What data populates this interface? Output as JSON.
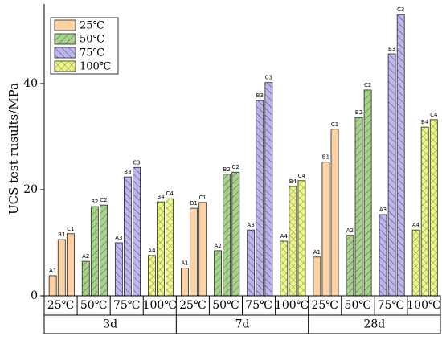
{
  "chart_data": {
    "type": "grouped_bar",
    "y_label": "UCS test rusults/MPa",
    "ylim": [
      0,
      55
    ],
    "yticks": [
      0,
      20,
      40
    ],
    "legend": [
      {
        "name": "25℃",
        "color": "#fcd2a2",
        "pattern": "none"
      },
      {
        "name": "50℃",
        "color": "#a9d18e",
        "pattern": "forward"
      },
      {
        "name": "75℃",
        "color": "#bcb6ea",
        "pattern": "backward"
      },
      {
        "name": "100℃",
        "color": "#eef78a",
        "pattern": "cross"
      }
    ],
    "groups": [
      {
        "name": "3d",
        "categories": [
          "25℃",
          "50℃",
          "75℃",
          "100℃"
        ],
        "bars": [
          [
            {
              "label": "A1",
              "value": 3.8
            },
            {
              "label": "B1",
              "value": 10.6
            },
            {
              "label": "C1",
              "value": 11.7
            }
          ],
          [
            {
              "label": "A2",
              "value": 6.5
            },
            {
              "label": "B2",
              "value": 16.8
            },
            {
              "label": "C2",
              "value": 17.1
            }
          ],
          [
            {
              "label": "A3",
              "value": 10.0
            },
            {
              "label": "B3",
              "value": 22.4
            },
            {
              "label": "C3",
              "value": 24.2
            }
          ],
          [
            {
              "label": "A4",
              "value": 7.6
            },
            {
              "label": "B4",
              "value": 17.7
            },
            {
              "label": "C4",
              "value": 18.3
            }
          ]
        ]
      },
      {
        "name": "7d",
        "categories": [
          "25℃",
          "50℃",
          "75℃",
          "100℃"
        ],
        "bars": [
          [
            {
              "label": "A1",
              "value": 5.2
            },
            {
              "label": "B1",
              "value": 16.5
            },
            {
              "label": "C1",
              "value": 17.6
            }
          ],
          [
            {
              "label": "A2",
              "value": 8.5
            },
            {
              "label": "B2",
              "value": 22.9
            },
            {
              "label": "C2",
              "value": 23.3
            }
          ],
          [
            {
              "label": "A3",
              "value": 12.4
            },
            {
              "label": "B3",
              "value": 36.8
            },
            {
              "label": "C3",
              "value": 40.2
            }
          ],
          [
            {
              "label": "A4",
              "value": 10.3
            },
            {
              "label": "B4",
              "value": 20.6
            },
            {
              "label": "C4",
              "value": 21.7
            }
          ]
        ]
      },
      {
        "name": "28d",
        "categories": [
          "25℃",
          "50℃",
          "75℃",
          "100℃"
        ],
        "bars": [
          [
            {
              "label": "A1",
              "value": 7.3
            },
            {
              "label": "B1",
              "value": 25.2
            },
            {
              "label": "C1",
              "value": 31.4
            }
          ],
          [
            {
              "label": "A2",
              "value": 11.4
            },
            {
              "label": "B2",
              "value": 33.6
            },
            {
              "label": "C2",
              "value": 38.8
            }
          ],
          [
            {
              "label": "A3",
              "value": 15.3
            },
            {
              "label": "B3",
              "value": 45.6
            },
            {
              "label": "C3",
              "value": 53.0
            }
          ],
          [
            {
              "label": "A4",
              "value": 12.4
            },
            {
              "label": "B4",
              "value": 31.8
            },
            {
              "label": "C4",
              "value": 33.2
            }
          ]
        ]
      }
    ]
  }
}
